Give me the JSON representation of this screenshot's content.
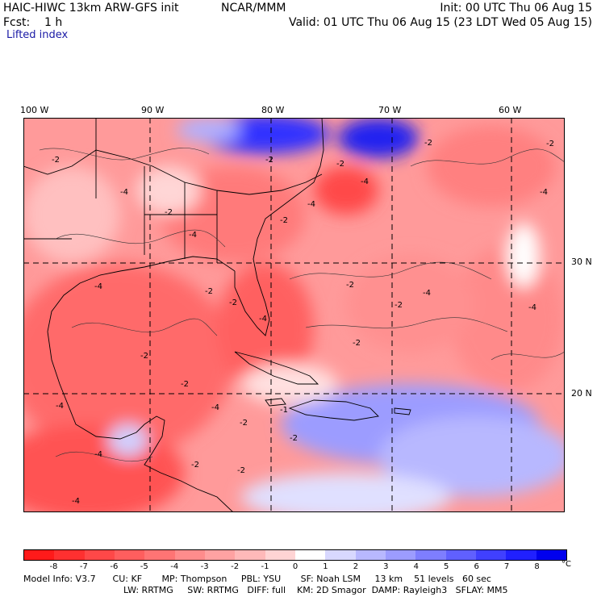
{
  "header": {
    "model": "HAIC-HIWC 13km ARW-GFS init",
    "org": "NCAR/MMM",
    "init": "Init: 00 UTC Thu 06 Aug 15",
    "fcst": "Fcst:    1 h",
    "valid": "Valid: 01 UTC Thu 06 Aug 15 (23 LDT Wed 05 Aug 15)",
    "field": "Lifted index"
  },
  "axes": {
    "lon_labels": [
      "100 W",
      "90 W",
      "80 W",
      "70 W",
      "60 W"
    ],
    "lat_labels": [
      "30 N",
      "20 N"
    ]
  },
  "contour_labels": [
    "-2",
    "-4",
    "-2",
    "-2",
    "-2",
    "-4",
    "-4",
    "-2",
    "-2",
    "-4",
    "-2",
    "-2",
    "-4",
    "-4",
    "-2",
    "-4",
    "-2",
    "-2",
    "-4",
    "-4",
    "-2",
    "-2",
    "-2",
    "-4",
    "-2",
    "-4",
    "-2",
    "-1",
    "-2",
    "-2",
    "-4",
    "-4"
  ],
  "colorbar": {
    "ticks": [
      "-8",
      "-7",
      "-6",
      "-5",
      "-4",
      "-3",
      "-2",
      "-1",
      "0",
      "1",
      "2",
      "3",
      "4",
      "5",
      "6",
      "7",
      "8"
    ],
    "unit": "°C",
    "colors": [
      "#ff1a1a",
      "#ff3030",
      "#ff4848",
      "#ff5e5e",
      "#ff7474",
      "#ff8c8c",
      "#ffa2a2",
      "#ffb9b9",
      "#ffd4d4",
      "#ffffff",
      "#d8d8ff",
      "#b8b8ff",
      "#9c9cff",
      "#7e7eff",
      "#6060ff",
      "#4040ff",
      "#2020ff",
      "#0000ee"
    ]
  },
  "model_info": {
    "line1": "Model Info: V3.7      CU: KF       MP: Thompson     PBL: YSU       SF: Noah LSM     13 km    51 levels   60 sec",
    "line2": "LW: RRTMG     SW: RRTMG   DIFF: full    KM: 2D Smagor  DAMP: Rayleigh3   SFLAY: MM5"
  }
}
